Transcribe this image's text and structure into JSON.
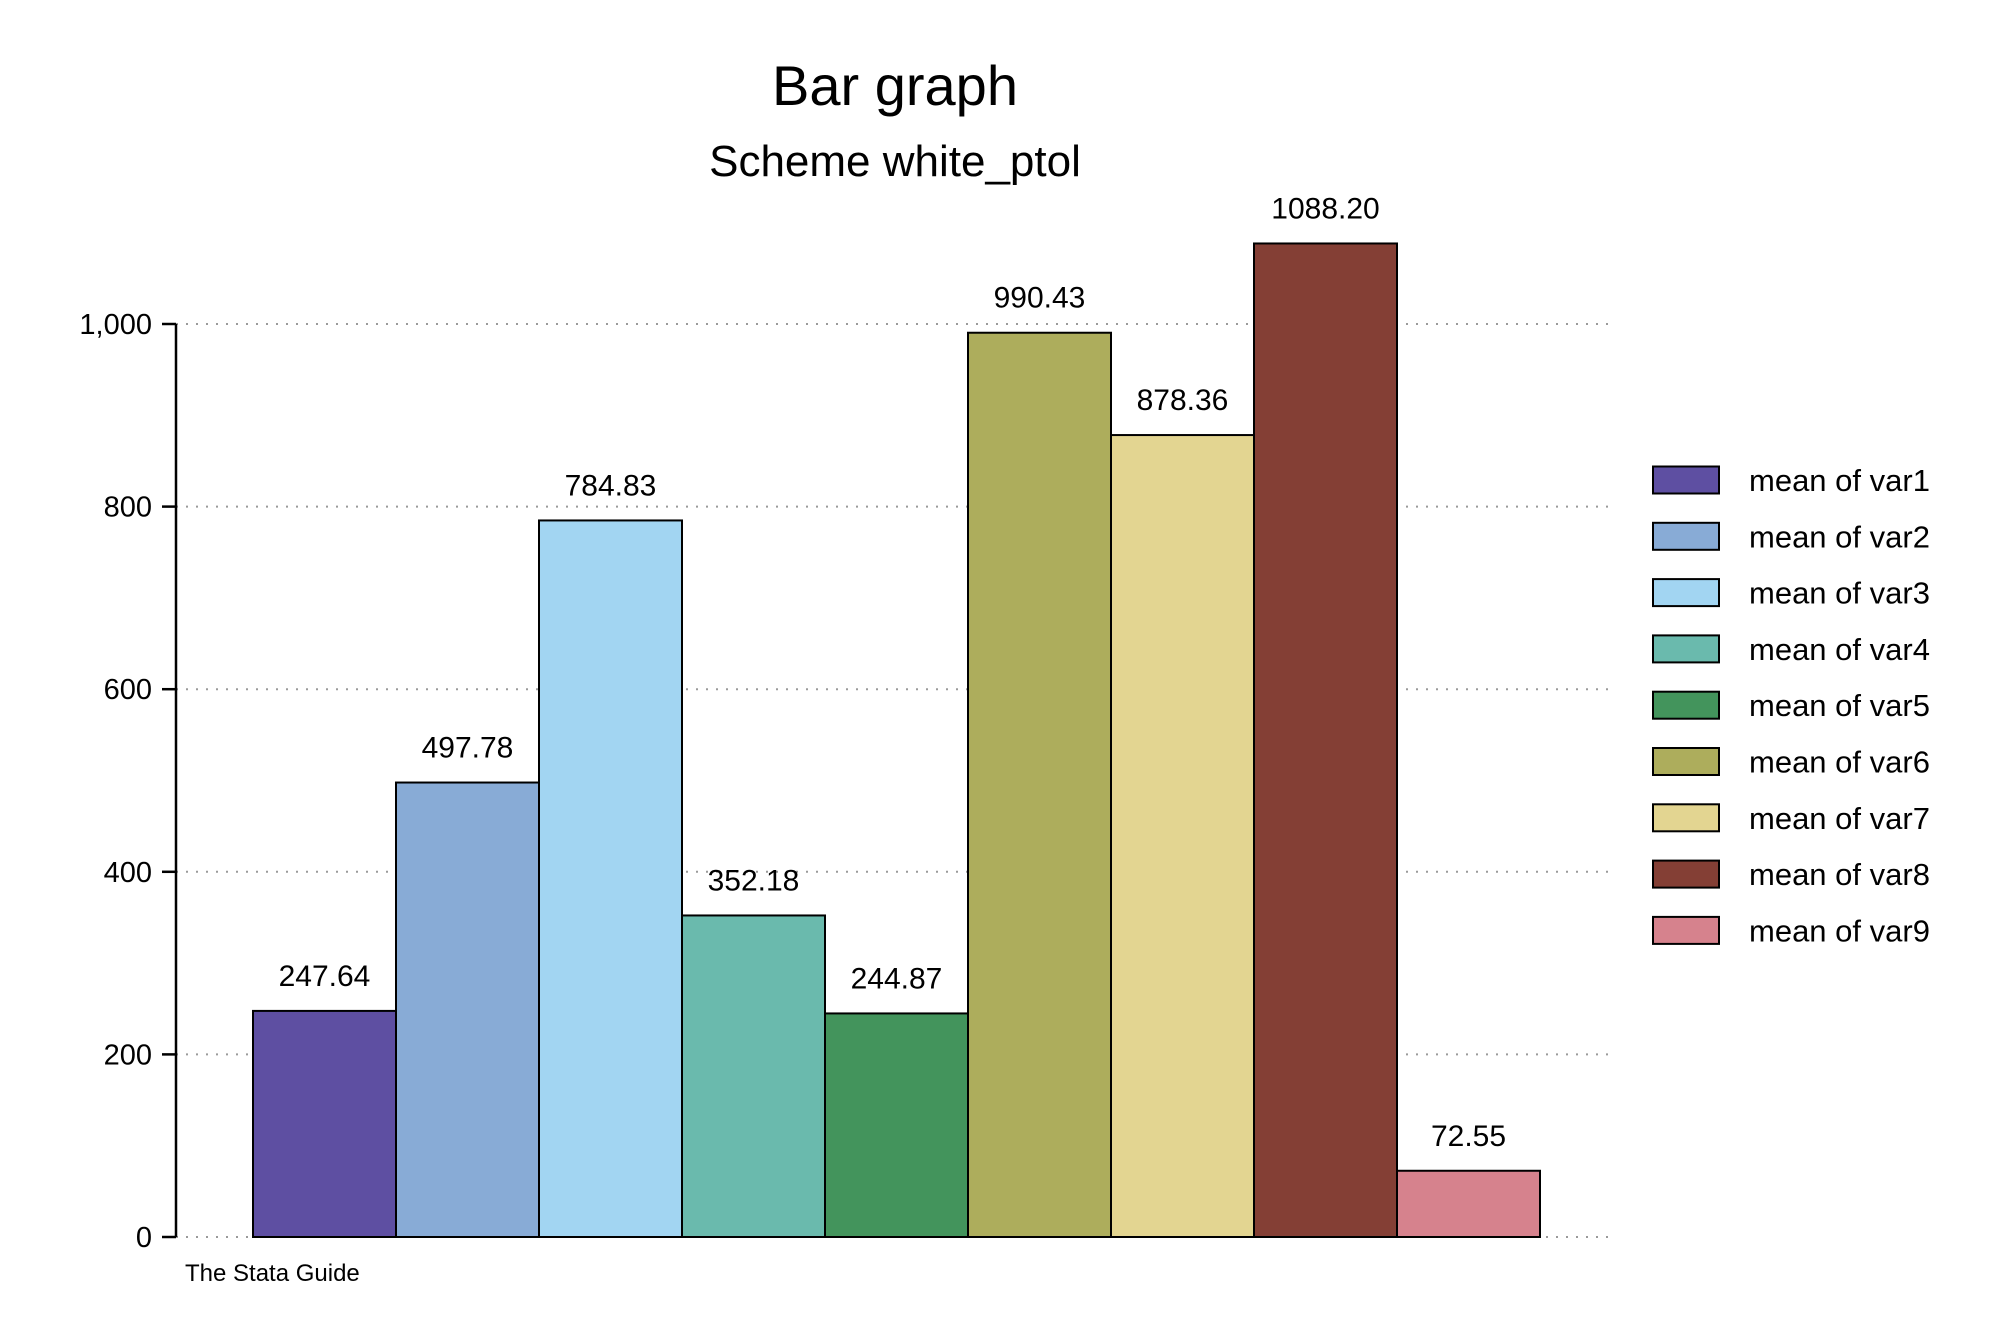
{
  "chart_data": {
    "type": "bar",
    "title": "Bar graph",
    "subtitle": "Scheme white_ptol",
    "note": "The Stata Guide",
    "xlabel": "",
    "ylabel": "",
    "ylim": [
      0,
      1000
    ],
    "yticks": [
      {
        "value": 0,
        "label": "0"
      },
      {
        "value": 200,
        "label": "200"
      },
      {
        "value": 400,
        "label": "400"
      },
      {
        "value": 600,
        "label": "600"
      },
      {
        "value": 800,
        "label": "800"
      },
      {
        "value": 1000,
        "label": "1,000"
      }
    ],
    "grid": true,
    "legend_position": "right",
    "series": [
      {
        "name": "mean of var1",
        "value": 247.64,
        "label": "247.64",
        "color": "#5E4FA2"
      },
      {
        "name": "mean of var2",
        "value": 497.78,
        "label": "497.78",
        "color": "#88ABD6"
      },
      {
        "name": "mean of var3",
        "value": 784.83,
        "label": "784.83",
        "color": "#A2D5F2"
      },
      {
        "name": "mean of var4",
        "value": 352.18,
        "label": "352.18",
        "color": "#6ABAAD"
      },
      {
        "name": "mean of var5",
        "value": 244.87,
        "label": "244.87",
        "color": "#43945C"
      },
      {
        "name": "mean of var6",
        "value": 990.43,
        "label": "990.43",
        "color": "#ADAD5C"
      },
      {
        "name": "mean of var7",
        "value": 878.36,
        "label": "878.36",
        "color": "#E3D591"
      },
      {
        "name": "mean of var8",
        "value": 1088.2,
        "label": "1088.20",
        "color": "#843F35"
      },
      {
        "name": "mean of var9",
        "value": 72.55,
        "label": "72.55",
        "color": "#D6828D"
      }
    ]
  }
}
